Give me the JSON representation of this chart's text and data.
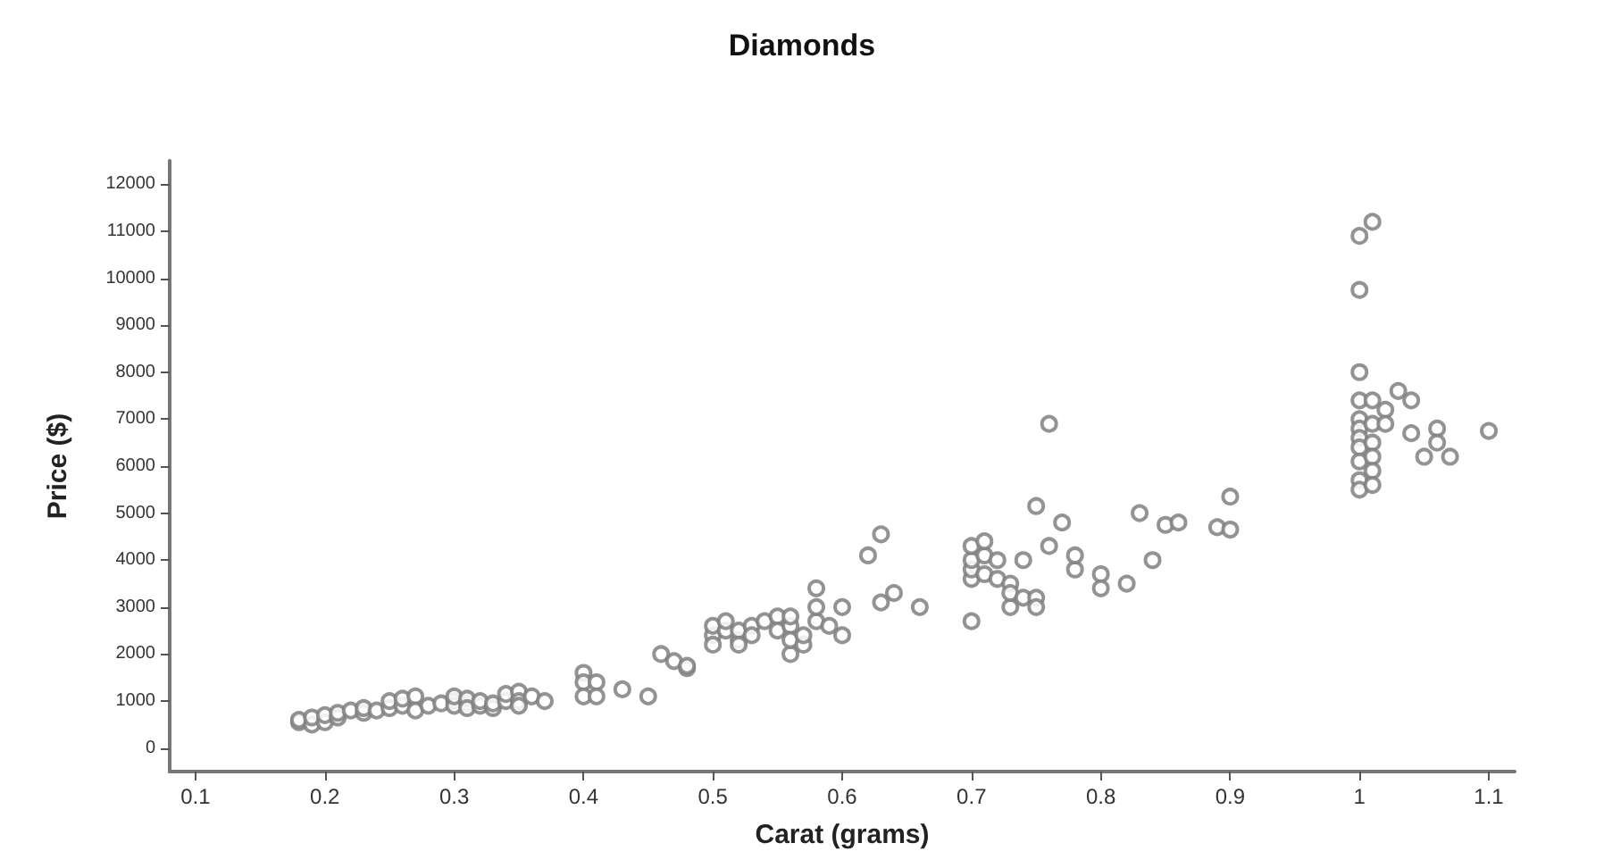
{
  "chart_data": {
    "type": "scatter",
    "title": "Diamonds",
    "xlabel": "Carat (grams)",
    "ylabel": "Price ($)",
    "xlim": [
      0.08,
      1.12
    ],
    "xticks": [
      0.1,
      0.2,
      0.3,
      0.4,
      0.5,
      0.6,
      0.7,
      0.8,
      0.9,
      1,
      1.1
    ],
    "ylim": [
      -500,
      12500
    ],
    "yticks": [
      0,
      1000,
      2000,
      3000,
      4000,
      5000,
      6000,
      7000,
      8000,
      9000,
      10000,
      11000,
      12000
    ],
    "grid": false,
    "marker": "circle",
    "series": [
      {
        "color": "#808080",
        "x": [
          0.18,
          0.18,
          0.19,
          0.19,
          0.2,
          0.2,
          0.21,
          0.21,
          0.22,
          0.23,
          0.23,
          0.24,
          0.25,
          0.25,
          0.26,
          0.26,
          0.27,
          0.27,
          0.28,
          0.29,
          0.3,
          0.3,
          0.3,
          0.31,
          0.31,
          0.31,
          0.32,
          0.32,
          0.33,
          0.33,
          0.34,
          0.34,
          0.35,
          0.35,
          0.35,
          0.36,
          0.37,
          0.4,
          0.4,
          0.4,
          0.41,
          0.41,
          0.43,
          0.45,
          0.46,
          0.47,
          0.48,
          0.48,
          0.5,
          0.5,
          0.5,
          0.51,
          0.51,
          0.52,
          0.52,
          0.52,
          0.53,
          0.53,
          0.54,
          0.55,
          0.55,
          0.56,
          0.56,
          0.56,
          0.56,
          0.57,
          0.57,
          0.58,
          0.58,
          0.58,
          0.59,
          0.6,
          0.6,
          0.62,
          0.63,
          0.63,
          0.64,
          0.66,
          0.7,
          0.7,
          0.7,
          0.7,
          0.7,
          0.71,
          0.71,
          0.71,
          0.72,
          0.72,
          0.73,
          0.73,
          0.73,
          0.74,
          0.74,
          0.75,
          0.75,
          0.75,
          0.76,
          0.76,
          0.77,
          0.78,
          0.78,
          0.8,
          0.8,
          0.82,
          0.83,
          0.84,
          0.85,
          0.86,
          0.89,
          0.9,
          0.9,
          1,
          1.01,
          1,
          1,
          1,
          1,
          1,
          1,
          1,
          1,
          1,
          1,
          1.01,
          1.01,
          1.01,
          1.01,
          1.01,
          1.01,
          1.02,
          1.02,
          1.03,
          1.04,
          1.04,
          1.05,
          1.06,
          1.06,
          1.07,
          1.1
        ],
        "values": [
          550,
          600,
          500,
          650,
          550,
          700,
          650,
          750,
          800,
          750,
          850,
          800,
          850,
          1000,
          900,
          1050,
          1100,
          800,
          900,
          950,
          1000,
          900,
          1100,
          950,
          1050,
          850,
          900,
          1000,
          850,
          950,
          1000,
          1150,
          1200,
          1000,
          900,
          1100,
          1000,
          1600,
          1400,
          1100,
          1400,
          1100,
          1250,
          1100,
          2000,
          1850,
          1700,
          1750,
          2400,
          2200,
          2600,
          2500,
          2700,
          2300,
          2500,
          2200,
          2600,
          2400,
          2700,
          2800,
          2500,
          2600,
          2800,
          2000,
          2300,
          2200,
          2400,
          2700,
          3000,
          3400,
          2600,
          3000,
          2400,
          4100,
          4550,
          3100,
          3300,
          3000,
          3600,
          3800,
          4000,
          4300,
          2700,
          3700,
          4100,
          4400,
          4000,
          3600,
          3500,
          3000,
          3300,
          3200,
          4000,
          3200,
          3000,
          5150,
          6900,
          4300,
          4800,
          3800,
          4100,
          3700,
          3400,
          3500,
          5000,
          4000,
          4750,
          4800,
          4700,
          5350,
          4650,
          10900,
          11200,
          9750,
          8000,
          7400,
          7000,
          6800,
          6600,
          6400,
          6100,
          5700,
          5500,
          7400,
          6900,
          6500,
          6200,
          5900,
          5600,
          7200,
          6900,
          7600,
          7400,
          6700,
          6200,
          6800,
          6500,
          6200,
          6750
        ]
      }
    ]
  }
}
